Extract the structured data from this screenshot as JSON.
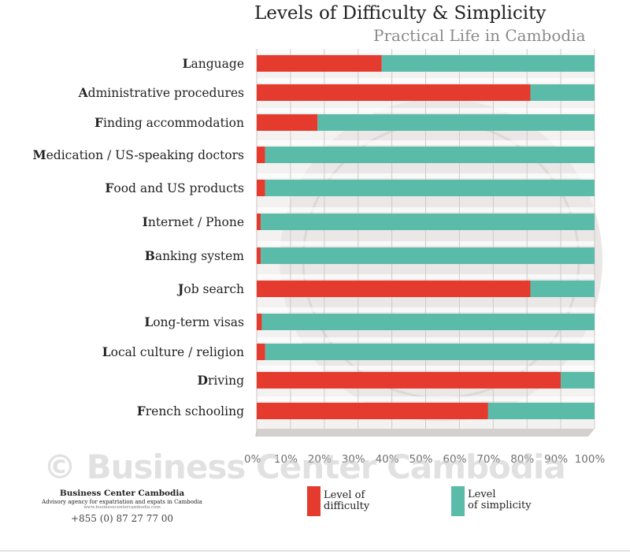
{
  "chart_data": {
    "type": "bar",
    "orientation": "horizontal",
    "stacked": true,
    "title": "Levels of Difficulty & Simplicity",
    "subtitle": "Practical Life in Cambodia",
    "categories": [
      "Language",
      "Administrative procedures",
      "Finding accommodation",
      "Medication / US-speaking doctors",
      "Food and US products",
      "Internet / Phone",
      "Banking system",
      "Job search",
      "Long-term visas",
      "Local culture / religion",
      "Driving",
      "French schooling"
    ],
    "series": [
      {
        "name": "Level of difficulty",
        "color": "#e53b2f",
        "values": [
          37,
          81,
          18,
          2.5,
          2.5,
          1.2,
          1.2,
          81,
          1.5,
          2.5,
          90,
          68.5
        ]
      },
      {
        "name": "Level of simplicity",
        "color": "#5bbba9",
        "values": [
          63,
          19,
          82,
          97.5,
          97.5,
          98.8,
          98.8,
          19,
          98.5,
          97.5,
          10,
          31.5
        ]
      }
    ],
    "xlim": [
      0,
      100
    ],
    "x_ticks": [
      "0%",
      "10%",
      "20%",
      "30%",
      "40%",
      "50%",
      "60%",
      "70%",
      "80%",
      "90%",
      "100%"
    ],
    "legend_position": "bottom"
  },
  "legend": {
    "difficulty": {
      "line1": "Level of",
      "line2": "difficulty",
      "color": "#e53b2f"
    },
    "simplicity": {
      "line1": "Level",
      "line2": "of simplicity",
      "color": "#5bbba9"
    }
  },
  "watermark": "© Business Center Cambodia",
  "brand": {
    "name": "Business Center Cambodia",
    "tagline": "Advisory agency for expatriation and expats in Cambodia",
    "website": "www.businesscentercambodia.com",
    "phone": "+855 (0) 87 27 77 00"
  }
}
